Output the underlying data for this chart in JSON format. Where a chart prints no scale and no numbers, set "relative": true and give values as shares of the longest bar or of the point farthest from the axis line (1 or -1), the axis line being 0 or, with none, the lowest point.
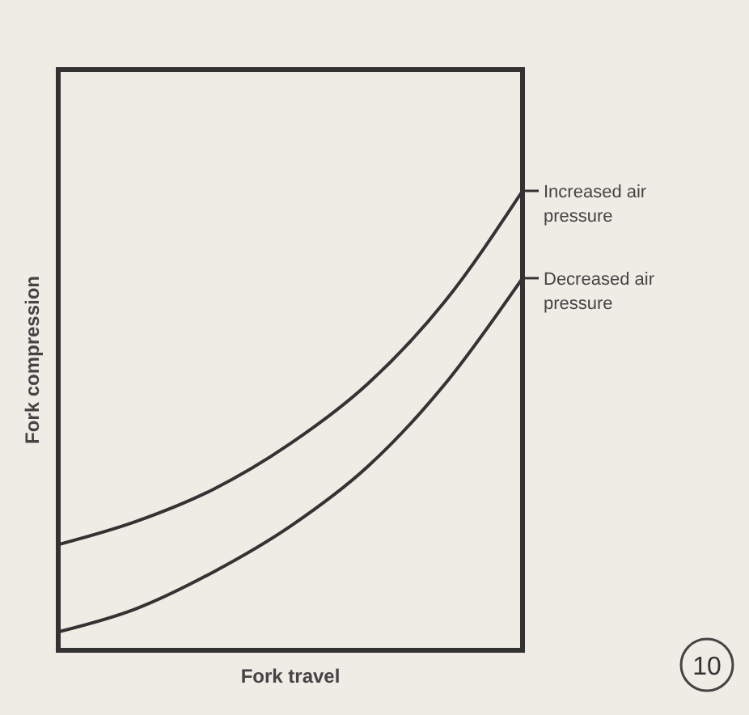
{
  "chart_data": {
    "type": "line",
    "relative": true,
    "legend": "right",
    "xlabel": "Fork travel",
    "ylabel": "Fork compression",
    "categories": [
      null,
      null,
      null,
      null,
      null,
      null,
      null
    ],
    "series": [
      {
        "name": "Increased air pressure",
        "color": "#333333",
        "values": [
          0.23,
          0.28,
          0.35,
          0.45,
          0.58,
          0.76,
          1
        ]
      },
      {
        "name": "Decreased air pressure",
        "color": "#333333",
        "values": [
          0.04,
          0.09,
          0.17,
          0.27,
          0.4,
          0.58,
          0.81
        ]
      }
    ],
    "annotations": [
      "10"
    ]
  }
}
